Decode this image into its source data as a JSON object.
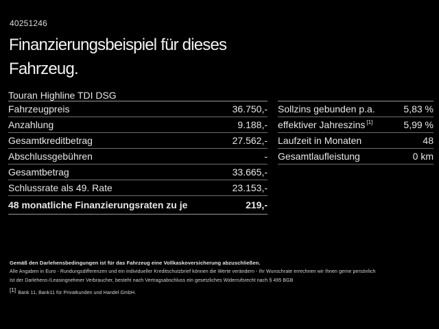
{
  "header": {
    "vehicle_id": "40251246",
    "title_line1": "Finanzierungsbeispiel für dieses",
    "title_line2": "Fahrzeug."
  },
  "finance_table": {
    "model": "Touran Highline TDI DSG",
    "rows": [
      {
        "label": "Fahrzeugpreis",
        "value": "36.750,-"
      },
      {
        "label": "Anzahlung",
        "value": "9.188,-"
      },
      {
        "label": "Gesamtkreditbetrag",
        "value": "27.562,-"
      },
      {
        "label": "Abschlussgebühren",
        "value": "-"
      },
      {
        "label": "Gesamtbetrag",
        "value": "33.665,-"
      },
      {
        "label": "Schlussrate als 49. Rate",
        "value": "23.153,-"
      },
      {
        "label": "48 monatliche Finanzierungsraten zu je",
        "value": "219,-"
      }
    ]
  },
  "conditions_table": {
    "rows": [
      {
        "label": "Sollzins gebunden p.a.",
        "footnote": "",
        "value": "5,83 %"
      },
      {
        "label": "effektiver Jahreszins",
        "footnote": "[1]",
        "value": "5,99 %"
      },
      {
        "label": "Laufzeit in Monaten",
        "footnote": "",
        "value": "48"
      },
      {
        "label": "Gesamtlaufleistung",
        "footnote": "",
        "value": "0 km"
      }
    ]
  },
  "footer": {
    "line1": "Gemäß den Darlehensbedingungen ist für das Fahrzeug eine Vollkaskoversicherung abzuschließen.",
    "line2": "Alle Angaben in Euro - Rundungsdifferenzen und ein individueller Kreditschutzbrief können die Werte verändern - Ihr Wunschrate errechnen wir Ihnen gerne persönlich",
    "line3": "Ist der Darlehens-/Leasingnehmer Verbraucher, besteht nach Vertragsabschluss ein gesetzliches Widerrufsrecht nach § 495 BGB",
    "footnote_marker": "[1]",
    "footnote_text": "Bank 11, Bank11 für Privatkunden und Handel GmbH."
  },
  "colors": {
    "background": "#000000",
    "text": "#e8e8e8",
    "divider": "#6e6e6e",
    "divider_strong": "#9a9a9a"
  }
}
